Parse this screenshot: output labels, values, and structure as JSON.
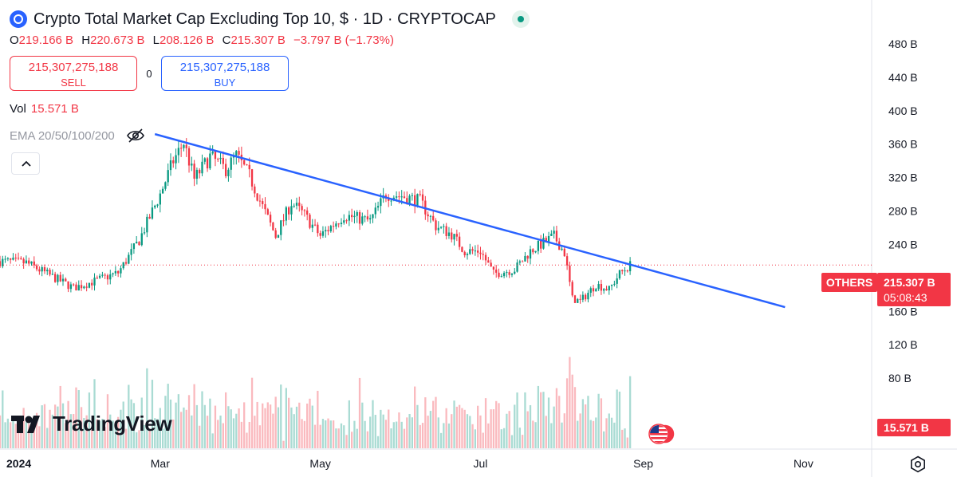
{
  "header": {
    "title": "Crypto Total Market Cap Excluding Top 10, $ · 1D · CRYPTOCAP",
    "symbol_icon": "symbol-logo-icon",
    "ohlc": {
      "open_key": "O",
      "open": "219.166 B",
      "high_key": "H",
      "high": "220.673 B",
      "low_key": "L",
      "low": "208.126 B",
      "close_key": "C",
      "close": "215.307 B",
      "change": "−3.797 B (−1.73%)"
    }
  },
  "trade": {
    "sell_price": "215,307,275,188",
    "sell_label": "SELL",
    "spread": "0",
    "buy_price": "215,307,275,188",
    "buy_label": "BUY"
  },
  "volume": {
    "label": "Vol",
    "value": "15.571 B"
  },
  "indicator": {
    "label": "EMA 20/50/100/200",
    "icon": "eye-off-icon"
  },
  "brand": {
    "name": "TradingView"
  },
  "tags": {
    "symbol": "OTHERS",
    "price": "215.307 B",
    "countdown": "05:08:43",
    "volume": "15.571 B"
  },
  "colors": {
    "up": "#089981",
    "down": "#f23645",
    "trendline": "#2962ff",
    "accent": "#2962ff"
  },
  "chart_data": {
    "type": "candlestick",
    "title": "Crypto Total Market Cap Excluding Top 10, $ · 1D · CRYPTOCAP",
    "ylim": [
      40,
      500
    ],
    "y_ticks": [
      {
        "value": 480,
        "label": "480 B"
      },
      {
        "value": 440,
        "label": "440 B"
      },
      {
        "value": 400,
        "label": "400 B"
      },
      {
        "value": 360,
        "label": "360 B"
      },
      {
        "value": 320,
        "label": "320 B"
      },
      {
        "value": 280,
        "label": "280 B"
      },
      {
        "value": 240,
        "label": "240 B"
      },
      {
        "value": 160,
        "label": "160 B"
      },
      {
        "value": 120,
        "label": "120 B"
      },
      {
        "value": 80,
        "label": "80 B"
      }
    ],
    "x_ticks": [
      {
        "date": "2024-01-01",
        "label": "2024"
      },
      {
        "date": "2024-03-01",
        "label": "Mar"
      },
      {
        "date": "2024-05-01",
        "label": "May"
      },
      {
        "date": "2024-07-01",
        "label": "Jul"
      },
      {
        "date": "2024-09-01",
        "label": "Sep"
      },
      {
        "date": "2024-11-01",
        "label": "Nov"
      }
    ],
    "xlim": [
      "2023-12-31",
      "2024-11-27"
    ],
    "current_price": 215.307,
    "trendline": [
      {
        "date": "2024-02-28",
        "value": 372
      },
      {
        "date": "2024-10-25",
        "value": 165
      }
    ],
    "price_path": [
      [
        "2023-12-31",
        220
      ],
      [
        "2024-01-10",
        218
      ],
      [
        "2024-01-22",
        198
      ],
      [
        "2024-01-28",
        188
      ],
      [
        "2024-02-05",
        196
      ],
      [
        "2024-02-14",
        206
      ],
      [
        "2024-02-22",
        245
      ],
      [
        "2024-03-01",
        300
      ],
      [
        "2024-03-06",
        340
      ],
      [
        "2024-03-10",
        362
      ],
      [
        "2024-03-14",
        318
      ],
      [
        "2024-03-20",
        345
      ],
      [
        "2024-03-26",
        330
      ],
      [
        "2024-03-30",
        346
      ],
      [
        "2024-04-04",
        322
      ],
      [
        "2024-04-09",
        285
      ],
      [
        "2024-04-14",
        250
      ],
      [
        "2024-04-20",
        290
      ],
      [
        "2024-04-25",
        275
      ],
      [
        "2024-05-01",
        250
      ],
      [
        "2024-05-10",
        275
      ],
      [
        "2024-05-20",
        268
      ],
      [
        "2024-05-26",
        300
      ],
      [
        "2024-06-01",
        298
      ],
      [
        "2024-06-08",
        292
      ],
      [
        "2024-06-14",
        262
      ],
      [
        "2024-06-20",
        252
      ],
      [
        "2024-06-25",
        232
      ],
      [
        "2024-07-01",
        232
      ],
      [
        "2024-07-06",
        205
      ],
      [
        "2024-07-14",
        210
      ],
      [
        "2024-07-20",
        232
      ],
      [
        "2024-07-29",
        250
      ],
      [
        "2024-08-02",
        230
      ],
      [
        "2024-08-05",
        175
      ],
      [
        "2024-08-08",
        172
      ],
      [
        "2024-08-14",
        192
      ],
      [
        "2024-08-19",
        186
      ],
      [
        "2024-08-23",
        205
      ],
      [
        "2024-08-27",
        215
      ]
    ],
    "volume_last": 15.571
  }
}
